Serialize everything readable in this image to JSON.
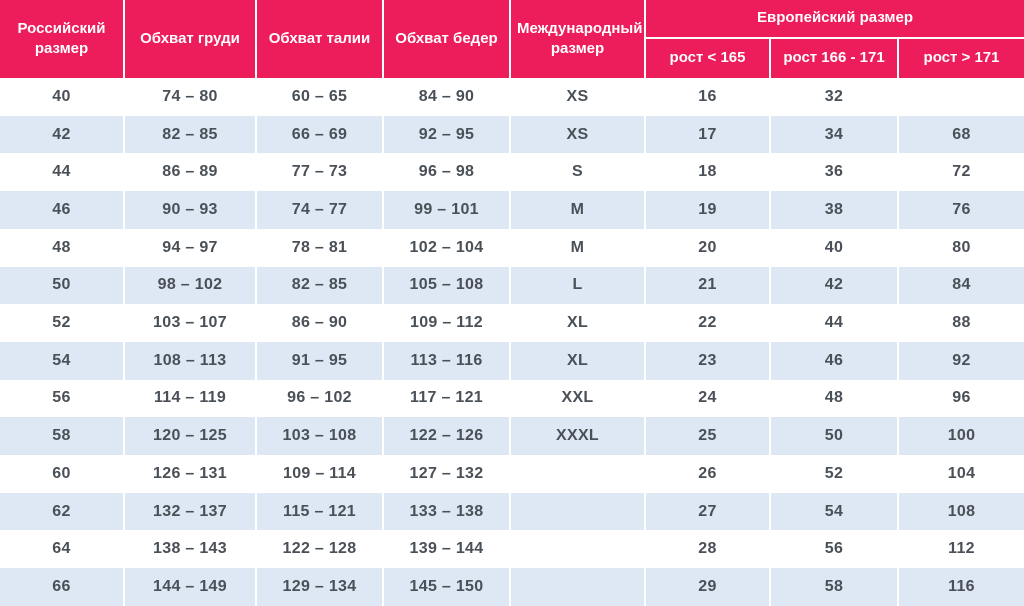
{
  "colors": {
    "header_bg": "#ED1C5A",
    "header_text": "#FFFFFF",
    "row_bg": "#FFFFFF",
    "row_alt_bg": "#DEE8F4",
    "body_text": "#4A5057",
    "divider": "#FFFFFF"
  },
  "chart_data": {
    "type": "table",
    "columns": [
      "Российский размер",
      "Обхват груди",
      "Обхват талии",
      "Обхват бедер",
      "Международный размер",
      "рост < 165",
      "рост 166 - 171",
      "рост > 171"
    ],
    "column_group": {
      "label": "Европейский размер",
      "spans": [
        "рост < 165",
        "рост 166 - 171",
        "рост > 171"
      ]
    },
    "rows": [
      [
        "40",
        "74 – 80",
        "60 – 65",
        "84 – 90",
        "XS",
        "16",
        "32",
        ""
      ],
      [
        "42",
        "82 – 85",
        "66 – 69",
        "92 – 95",
        "XS",
        "17",
        "34",
        "68"
      ],
      [
        "44",
        "86 – 89",
        "77 – 73",
        "96 – 98",
        "S",
        "18",
        "36",
        "72"
      ],
      [
        "46",
        "90 – 93",
        "74 – 77",
        "99 – 101",
        "M",
        "19",
        "38",
        "76"
      ],
      [
        "48",
        "94 – 97",
        "78 – 81",
        "102 – 104",
        "M",
        "20",
        "40",
        "80"
      ],
      [
        "50",
        "98 – 102",
        "82 – 85",
        "105 – 108",
        "L",
        "21",
        "42",
        "84"
      ],
      [
        "52",
        "103 – 107",
        "86 – 90",
        "109 – 112",
        "XL",
        "22",
        "44",
        "88"
      ],
      [
        "54",
        "108 – 113",
        "91 – 95",
        "113 – 116",
        "XL",
        "23",
        "46",
        "92"
      ],
      [
        "56",
        "114 – 119",
        "96 – 102",
        "117 – 121",
        "XXL",
        "24",
        "48",
        "96"
      ],
      [
        "58",
        "120 – 125",
        "103 – 108",
        "122 – 126",
        "XXXL",
        "25",
        "50",
        "100"
      ],
      [
        "60",
        "126 – 131",
        "109 – 114",
        "127 – 132",
        "",
        "26",
        "52",
        "104"
      ],
      [
        "62",
        "132 – 137",
        "115 – 121",
        "133 – 138",
        "",
        "27",
        "54",
        "108"
      ],
      [
        "64",
        "138 – 143",
        "122 – 128",
        "139 – 144",
        "",
        "28",
        "56",
        "112"
      ],
      [
        "66",
        "144 – 149",
        "129 – 134",
        "145 – 150",
        "",
        "29",
        "58",
        "116"
      ]
    ]
  }
}
